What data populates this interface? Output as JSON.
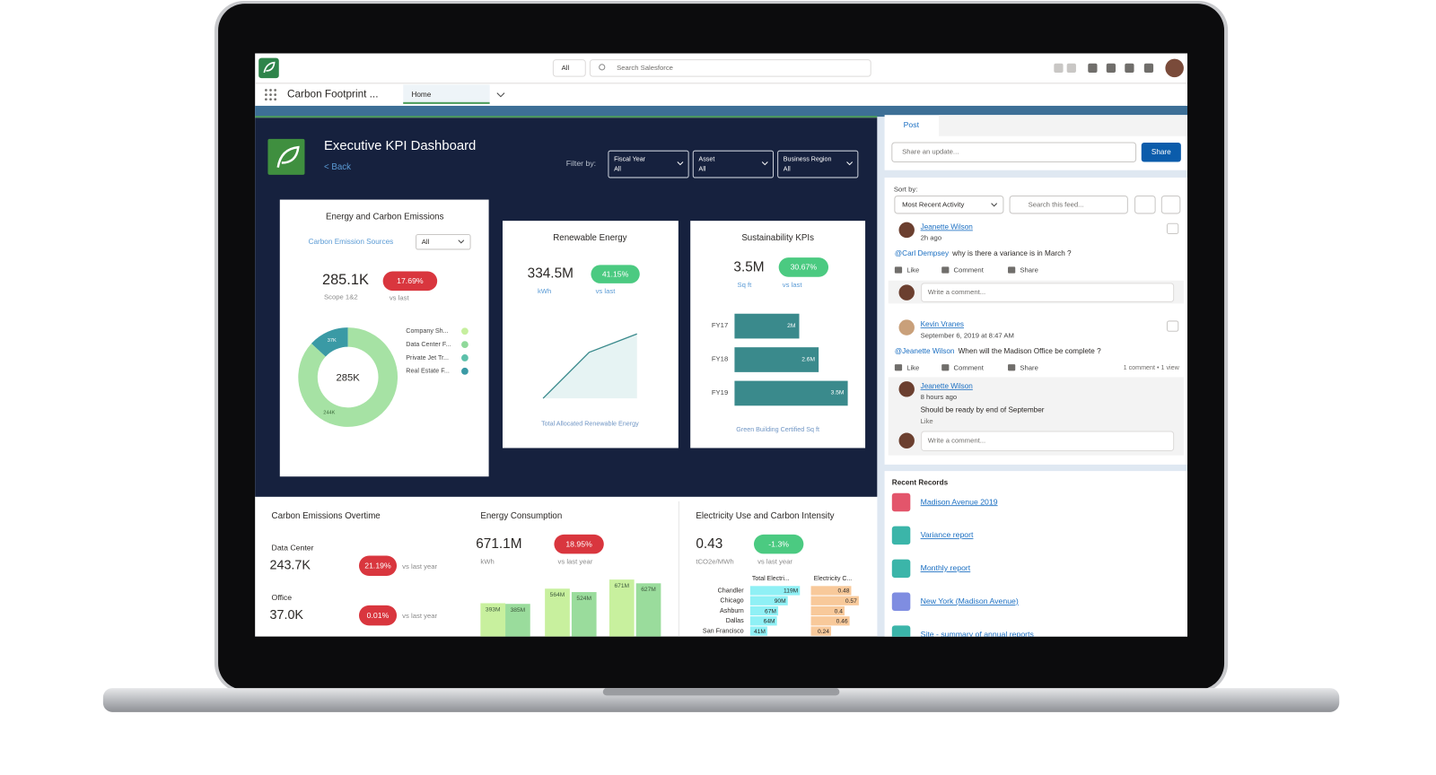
{
  "header": {
    "search_scope": "All",
    "search_placeholder": "Search Salesforce",
    "app_name": "Carbon Footprint ...",
    "tab": "Home"
  },
  "dashboard": {
    "title": "Executive KPI Dashboard",
    "back": "< Back",
    "filter_label": "Filter by:",
    "filters": [
      {
        "label": "Fiscal Year",
        "value": "All"
      },
      {
        "label": "Asset",
        "value": "All"
      },
      {
        "label": "Business Region",
        "value": "All"
      }
    ]
  },
  "energy_card": {
    "title": "Energy and Carbon Emissions",
    "source_label": "Carbon Emission Sources",
    "source_value": "All",
    "kpi": "285.1K",
    "kpi_sub": "Scope 1&2",
    "badge": "17.69%",
    "badge_sub": "vs last",
    "donut_center": "285K",
    "segments": [
      {
        "value": 37,
        "label": "37K",
        "color": "#3a9aa5"
      },
      {
        "value": 244,
        "label": "244K",
        "color": "#a6e2a4"
      }
    ],
    "legend": [
      {
        "name": "Company Sh...",
        "color": "#c6ef9e"
      },
      {
        "name": "Data Center F...",
        "color": "#8fd99a"
      },
      {
        "name": "Private Jet Tr...",
        "color": "#5cc0aa"
      },
      {
        "name": "Real Estate F...",
        "color": "#3a9aa5"
      }
    ]
  },
  "renewable_card": {
    "title": "Renewable Energy",
    "kpi": "334.5M",
    "unit": "kWh",
    "badge": "41.15%",
    "badge_sub": "vs last",
    "caption": "Total Allocated Renewable Energy"
  },
  "sustainability_card": {
    "title": "Sustainability KPIs",
    "kpi": "3.5M",
    "unit": "Sq ft",
    "badge": "30.67%",
    "badge_sub": "vs last",
    "bars": [
      {
        "category": "FY17",
        "value": 2,
        "label": "2M"
      },
      {
        "category": "FY18",
        "value": 2.6,
        "label": "2.6M"
      },
      {
        "category": "FY19",
        "value": 3.5,
        "label": "3.5M"
      }
    ],
    "color": "#3a8a8c",
    "caption": "Green Building Certified Sq ft"
  },
  "emissions_overtime": {
    "title": "Carbon Emissions Overtime",
    "rows": [
      {
        "name": "Data Center",
        "value": "243.7K",
        "badge": "21.19%",
        "badge_sub": "vs last year"
      },
      {
        "name": "Office",
        "value": "37.0K",
        "badge": "0.01%",
        "badge_sub": "vs last year"
      }
    ]
  },
  "energy_consumption": {
    "title": "Energy Consumption",
    "kpi": "671.1M",
    "unit": "kWh",
    "badge": "18.95%",
    "badge_sub": "vs last year",
    "bars": [
      {
        "value": 393,
        "label": "393M",
        "color": "#c8f09e"
      },
      {
        "value": 385,
        "label": "385M",
        "color": "#9adc9c"
      },
      {
        "value": 564,
        "label": "564M",
        "color": "#c8f09e"
      },
      {
        "value": 524,
        "label": "524M",
        "color": "#9adc9c"
      },
      {
        "value": 671,
        "label": "671M",
        "color": "#c8f09e"
      },
      {
        "value": 627,
        "label": "627M",
        "color": "#9adc9c"
      }
    ]
  },
  "electricity": {
    "title": "Electricity Use and Carbon Intensity",
    "kpi": "0.43",
    "unit": "tCO2e/MWh",
    "badge": "-1.3%",
    "badge_sub": "vs last year",
    "columns": [
      "Total Electri...",
      "Electricity C..."
    ],
    "use_color": "#8ff0f5",
    "intensity_color": "#f8c99a",
    "rows": [
      {
        "name": "Chandler",
        "use": 119,
        "use_label": "119M",
        "intensity": 0.48
      },
      {
        "name": "Chicago",
        "use": 90,
        "use_label": "90M",
        "intensity": 0.57
      },
      {
        "name": "Ashburn",
        "use": 67,
        "use_label": "67M",
        "intensity": 0.4
      },
      {
        "name": "Dallas",
        "use": 64,
        "use_label": "64M",
        "intensity": 0.46
      },
      {
        "name": "San Francisco",
        "use": 41,
        "use_label": "41M",
        "intensity": 0.24
      }
    ]
  },
  "feed": {
    "tab": "Post",
    "placeholder": "Share an update...",
    "share": "Share",
    "sort_label": "Sort by:",
    "sort_value": "Most Recent Activity",
    "search_placeholder": "Search this feed...",
    "posts": [
      {
        "author": "Jeanette Wilson",
        "time": "2h ago",
        "mention": "@Carl Dempsey",
        "text": "why is there a variance is in March ?",
        "actions": [
          "Like",
          "Comment",
          "Share"
        ],
        "comment_placeholder": "Write a comment..."
      },
      {
        "author": "Kevin Vranes",
        "time": "September 6, 2019 at 8:47 AM",
        "mention": "@Jeanette Wilson",
        "text": "When will the Madison Office be complete ?",
        "actions": [
          "Like",
          "Comment",
          "Share"
        ],
        "stats": "1 comment • 1 view",
        "reply": {
          "author": "Jeanette Wilson",
          "time": "8 hours ago",
          "text": "Should be ready by end of September",
          "like": "Like"
        },
        "comment_placeholder": "Write a comment..."
      }
    ]
  },
  "recent": {
    "title": "Recent Records",
    "items": [
      "Madison Avenue 2019",
      "Variance report",
      "Monthly report",
      "New York (Madison Avenue)",
      "Site - summary of annual reports"
    ]
  }
}
